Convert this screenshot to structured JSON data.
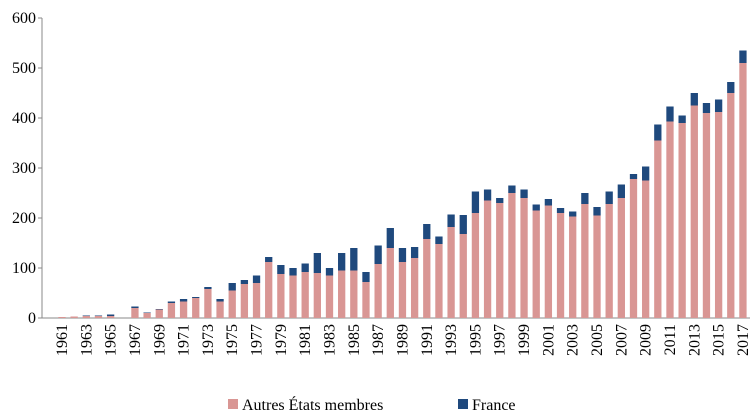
{
  "chart_data": {
    "type": "stacked_bar",
    "categories": [
      "1961",
      null,
      "1963",
      null,
      "1965",
      null,
      "1967",
      null,
      "1969",
      null,
      "1971",
      null,
      "1973",
      null,
      "1975",
      null,
      "1977",
      null,
      "1979",
      null,
      "1981",
      null,
      "1983",
      null,
      "1985",
      null,
      "1987",
      null,
      "1989",
      null,
      "1991",
      null,
      "1993",
      null,
      "1995",
      null,
      "1997",
      null,
      "1999",
      null,
      "2001",
      null,
      "2003",
      null,
      "2005",
      null,
      "2007",
      null,
      "2009",
      null,
      "2011",
      null,
      "2013",
      null,
      "2015",
      null,
      "2017"
    ],
    "series": [
      {
        "name": "Autres États membres",
        "color": "#d99694",
        "values": [
          2,
          3,
          4,
          4,
          4,
          0,
          20,
          10,
          17,
          30,
          33,
          40,
          58,
          33,
          55,
          68,
          70,
          112,
          88,
          85,
          92,
          90,
          85,
          95,
          95,
          72,
          108,
          140,
          112,
          120,
          158,
          148,
          182,
          168,
          210,
          235,
          230,
          250,
          240,
          215,
          225,
          210,
          203,
          228,
          205,
          228,
          240,
          278,
          275,
          355,
          393,
          390,
          425,
          410,
          412,
          450,
          510
        ]
      },
      {
        "name": "France",
        "color": "#1f497d",
        "values": [
          0,
          0,
          1,
          1,
          3,
          0,
          3,
          1,
          1,
          3,
          5,
          2,
          4,
          5,
          15,
          8,
          15,
          10,
          18,
          15,
          17,
          40,
          15,
          35,
          45,
          20,
          37,
          40,
          28,
          22,
          30,
          15,
          25,
          38,
          43,
          22,
          10,
          15,
          17,
          12,
          13,
          10,
          10,
          22,
          17,
          25,
          27,
          10,
          28,
          32,
          30,
          15,
          25,
          20,
          25,
          22,
          25
        ]
      }
    ],
    "ylim": [
      0,
      600
    ],
    "yticks": [
      0,
      100,
      200,
      300,
      400,
      500,
      600
    ],
    "legend": "bottom"
  }
}
